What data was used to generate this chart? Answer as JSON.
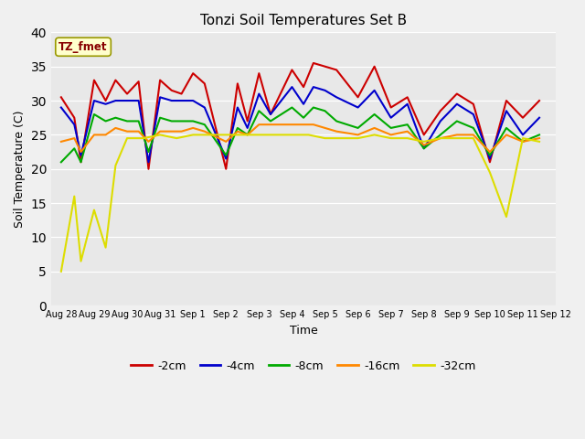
{
  "title": "Tonzi Soil Temperatures Set B",
  "xlabel": "Time",
  "ylabel": "Soil Temperature (C)",
  "ylim": [
    0,
    40
  ],
  "background_color": "#e8e8e8",
  "fig_background": "#f0f0f0",
  "xtick_labels": [
    "Aug 28",
    "Aug 29",
    "Aug 30",
    "Aug 31",
    "Sep 1",
    "Sep 2",
    "Sep 3",
    "Sep 4",
    "Sep 5",
    "Sep 6",
    "Sep 7",
    "Sep 8",
    "Sep 9",
    "Sep 10",
    "Sep 11",
    "Sep 12"
  ],
  "ytick_values": [
    0,
    5,
    10,
    15,
    20,
    25,
    30,
    35,
    40
  ],
  "series": {
    "-2cm": {
      "color": "#cc0000",
      "x": [
        0,
        0.4,
        0.6,
        1.0,
        1.35,
        1.65,
        2.0,
        2.35,
        2.65,
        3.0,
        3.35,
        3.65,
        4.0,
        4.35,
        5.0,
        5.35,
        5.65,
        6.0,
        6.35,
        7.0,
        7.35,
        7.65,
        8.0,
        8.35,
        9.0,
        9.5,
        10.0,
        10.5,
        11.0,
        11.5,
        12.0,
        12.5,
        13.0,
        13.5,
        14.0,
        14.5
      ],
      "y": [
        30.5,
        27.5,
        21.0,
        33.0,
        30.0,
        33.0,
        31.0,
        32.8,
        20.0,
        33.0,
        31.5,
        31.0,
        34.0,
        32.5,
        20.0,
        32.5,
        27.0,
        34.0,
        28.0,
        34.5,
        32.0,
        35.5,
        35.0,
        34.5,
        30.5,
        35.0,
        29.0,
        30.5,
        25.0,
        28.5,
        31.0,
        29.5,
        21.0,
        30.0,
        27.5,
        30.0
      ]
    },
    "-4cm": {
      "color": "#0000cc",
      "x": [
        0,
        0.4,
        0.6,
        1.0,
        1.35,
        1.65,
        2.0,
        2.35,
        2.65,
        3.0,
        3.35,
        3.65,
        4.0,
        4.35,
        5.0,
        5.35,
        5.65,
        6.0,
        6.35,
        7.0,
        7.35,
        7.65,
        8.0,
        8.35,
        9.0,
        9.5,
        10.0,
        10.5,
        11.0,
        11.5,
        12.0,
        12.5,
        13.0,
        13.5,
        14.0,
        14.5
      ],
      "y": [
        29.0,
        26.5,
        22.0,
        30.0,
        29.5,
        30.0,
        30.0,
        30.0,
        21.0,
        30.5,
        30.0,
        30.0,
        30.0,
        29.0,
        21.5,
        29.0,
        26.0,
        31.0,
        28.0,
        32.0,
        29.5,
        32.0,
        31.5,
        30.5,
        29.0,
        31.5,
        27.5,
        29.5,
        23.0,
        27.0,
        29.5,
        28.0,
        21.5,
        28.5,
        25.0,
        27.5
      ]
    },
    "-8cm": {
      "color": "#00aa00",
      "x": [
        0,
        0.4,
        0.6,
        1.0,
        1.35,
        1.65,
        2.0,
        2.35,
        2.65,
        3.0,
        3.35,
        3.65,
        4.0,
        4.35,
        5.0,
        5.35,
        5.65,
        6.0,
        6.35,
        7.0,
        7.35,
        7.65,
        8.0,
        8.35,
        9.0,
        9.5,
        10.0,
        10.5,
        11.0,
        11.5,
        12.0,
        12.5,
        13.0,
        13.5,
        14.0,
        14.5
      ],
      "y": [
        21.0,
        23.0,
        21.0,
        28.0,
        27.0,
        27.5,
        27.0,
        27.0,
        22.5,
        27.5,
        27.0,
        27.0,
        27.0,
        26.5,
        22.0,
        26.0,
        25.0,
        28.5,
        27.0,
        29.0,
        27.5,
        29.0,
        28.5,
        27.0,
        26.0,
        28.0,
        26.0,
        26.5,
        23.0,
        25.0,
        27.0,
        26.0,
        22.0,
        26.0,
        24.0,
        25.0
      ]
    },
    "-16cm": {
      "color": "#ff8800",
      "x": [
        0,
        0.4,
        0.6,
        1.0,
        1.35,
        1.65,
        2.0,
        2.35,
        2.65,
        3.0,
        3.35,
        3.65,
        4.0,
        4.35,
        5.0,
        5.35,
        5.65,
        6.0,
        6.35,
        7.0,
        7.35,
        7.65,
        8.0,
        8.35,
        9.0,
        9.5,
        10.0,
        10.5,
        11.0,
        11.5,
        12.0,
        12.5,
        13.0,
        13.5,
        14.0,
        14.5
      ],
      "y": [
        24.0,
        24.5,
        22.5,
        25.0,
        25.0,
        26.0,
        25.5,
        25.5,
        24.0,
        25.5,
        25.5,
        25.5,
        26.0,
        25.5,
        24.0,
        25.5,
        25.0,
        26.5,
        26.5,
        26.5,
        26.5,
        26.5,
        26.0,
        25.5,
        25.0,
        26.0,
        25.0,
        25.5,
        23.5,
        24.5,
        25.0,
        25.0,
        22.5,
        25.0,
        24.0,
        24.5
      ]
    },
    "-32cm": {
      "color": "#dddd00",
      "x": [
        0,
        0.4,
        0.6,
        1.0,
        1.35,
        1.65,
        2.0,
        2.5,
        3.0,
        3.5,
        4.0,
        4.5,
        5.0,
        5.5,
        6.0,
        6.5,
        7.0,
        7.5,
        8.0,
        8.5,
        9.0,
        9.5,
        10.0,
        10.5,
        11.0,
        11.5,
        12.0,
        12.5,
        13.0,
        13.5,
        14.0,
        14.5
      ],
      "y": [
        5.0,
        16.0,
        6.5,
        14.0,
        8.5,
        20.5,
        24.5,
        24.5,
        25.0,
        24.5,
        25.0,
        25.0,
        25.0,
        25.0,
        25.0,
        25.0,
        25.0,
        25.0,
        24.5,
        24.5,
        24.5,
        25.0,
        24.5,
        24.5,
        24.0,
        24.5,
        24.5,
        24.5,
        19.5,
        13.0,
        24.5,
        24.0
      ]
    }
  }
}
